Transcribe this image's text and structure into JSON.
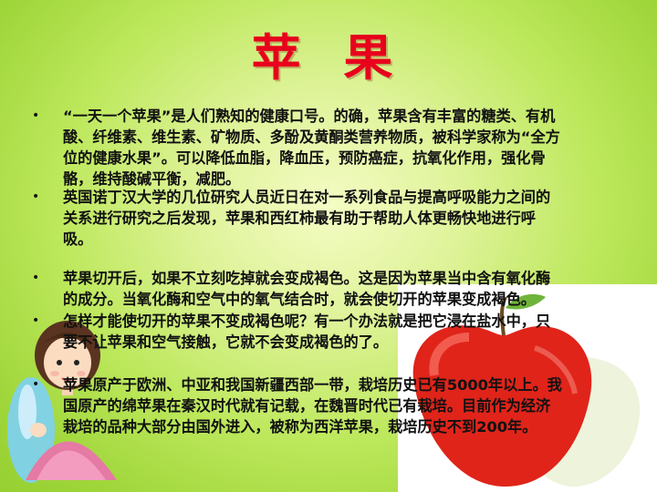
{
  "slide": {
    "title": "苹 果",
    "bullets": [
      {
        "text": "“一天一个苹果”是人们熟知的健康口号。的确，苹果含有丰富的糖类、有机\n酸、纤维素、维生素、矿物质、多酚及黄酮类营养物质，被科学家称为“全方\n位的健康水果”。可以降低血脂，降血压，预防癌症，抗氧化作用，强化骨\n骼，维持酸碱平衡，减肥。"
      },
      {
        "text": "英国诺丁汉大学的几位研究人员近日在对一系列食品与提高呼吸能力之间的\n关系进行研究之后发现，苹果和西红柿最有助于帮助人体更畅快地进行呼\n吸。"
      },
      {
        "text": "苹果切开后，如果不立刻吃掉就会变成褐色。这是因为苹果当中含有氧化酶\n的成分。当氧化酶和空气中的氧气结合时，就会使切开的苹果变成褐色。"
      },
      {
        "text": "怎样才能使切开的苹果不变成褐色呢？有一个办法就是把它浸在盐水中，只\n要不让苹果和空气接触，它就不会变成褐色的了。"
      },
      {
        "text": "苹果原产于欧洲、中亚和我国新疆西部一带，栽培历史已有5000年以上。我\n国原产的绵苹果在秦汉时代就有记载，在魏晋时代已有栽培。目前作为经济\n栽培的品种大部分由国外进入，被称为西洋苹果，栽培历史不到200年。"
      }
    ]
  },
  "colors": {
    "title": "#e8001c",
    "background": "#b8e655",
    "text": "#111111"
  },
  "decorations": {
    "left_illustration": "girl-illustration",
    "right_illustration": "apple-and-pear-illustration"
  }
}
